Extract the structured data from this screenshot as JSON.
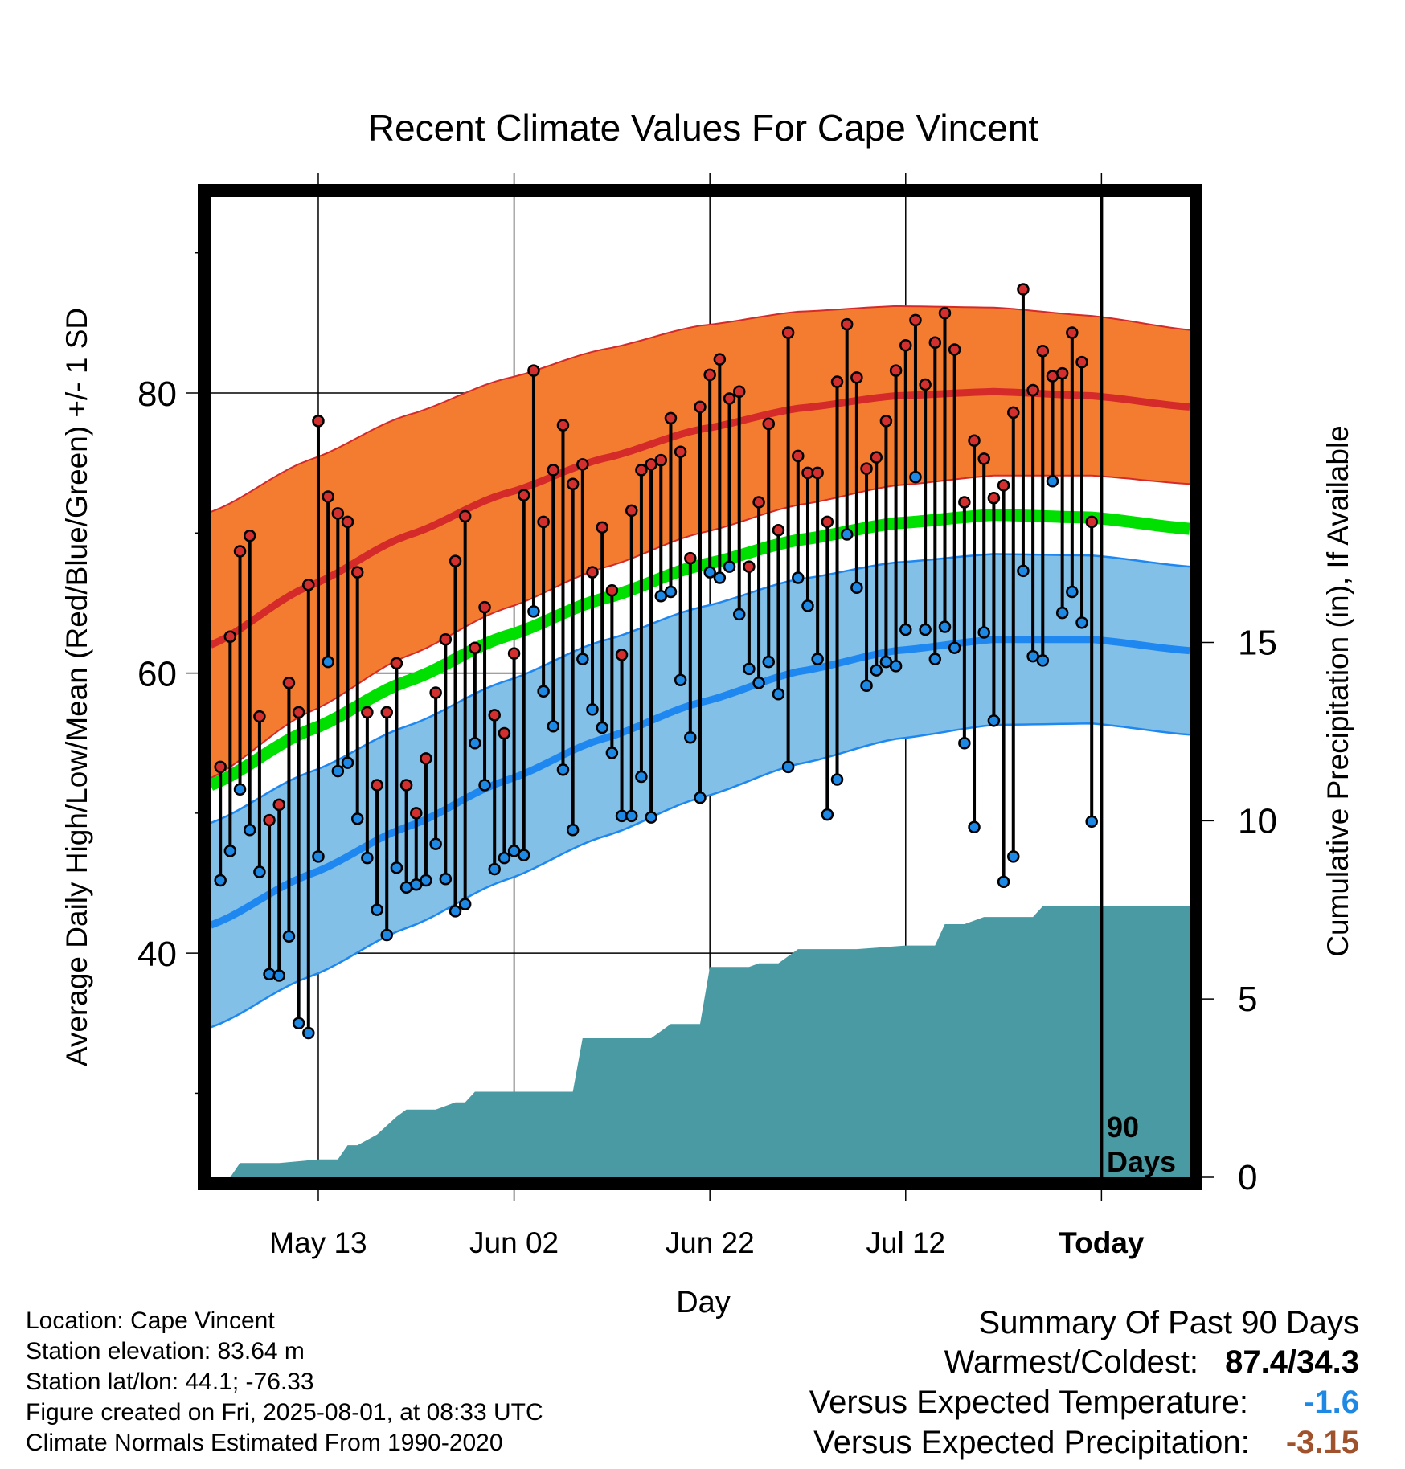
{
  "chart_data": {
    "type": "line",
    "title": "Recent Climate Values For Cape Vincent",
    "xlabel": "Day",
    "ylabel": "Average Daily High/Low/Mean (Red/Blue/Green) +/- 1 SD",
    "y2label": "Cumulative Precipitation (in), If Available",
    "x_tick_labels": [
      "May 13",
      "Jun 02",
      "Jun 22",
      "Jul 12",
      "Today"
    ],
    "x_tick_day_index": [
      11,
      31,
      51,
      71,
      91
    ],
    "x_range_days": [
      0,
      100
    ],
    "ylim": [
      24,
      94
    ],
    "yticks": [
      40,
      60,
      80
    ],
    "y2lim": [
      0,
      27.5
    ],
    "y2ticks": [
      0,
      5,
      10,
      15
    ],
    "today_label_line1": "90",
    "today_label_line2": "Days",
    "colors": {
      "high_band": "#f47c30",
      "high_line": "#d42a2a",
      "low_band": "#82c0e8",
      "low_line": "#1e88f0",
      "mean_line": "#00e000",
      "precip": "#4a9aa3",
      "high_dot": "#d32f2f",
      "low_dot": "#1e88e5"
    },
    "normals": {
      "day": [
        0,
        10,
        20,
        30,
        40,
        50,
        60,
        70,
        80,
        90,
        100
      ],
      "high_mean": [
        62,
        66.2,
        69.8,
        72.8,
        75.3,
        77.4,
        78.9,
        79.8,
        80.1,
        79.8,
        79.0
      ],
      "high_sd": [
        9.5,
        9.0,
        8.6,
        8.2,
        7.8,
        7.4,
        6.9,
        6.4,
        6.0,
        5.7,
        5.5
      ],
      "low_mean": [
        42,
        45.6,
        49.0,
        52.3,
        55.3,
        57.9,
        60.1,
        61.6,
        62.4,
        62.4,
        61.6
      ],
      "low_sd": [
        7.3,
        7.3,
        7.2,
        7.1,
        7.0,
        6.8,
        6.6,
        6.3,
        6.1,
        6.0,
        6.0
      ],
      "mean": [
        52,
        55.9,
        59.4,
        62.6,
        65.3,
        67.7,
        69.5,
        70.7,
        71.3,
        71.1,
        70.3
      ]
    },
    "daily_high": [
      53.3,
      62.6,
      68.7,
      69.8,
      56.9,
      49.5,
      50.6,
      59.3,
      57.2,
      66.3,
      78.0,
      72.6,
      71.4,
      70.8,
      67.2,
      57.2,
      52.0,
      57.2,
      60.7,
      52.0,
      50.0,
      53.9,
      58.6,
      62.4,
      68.0,
      71.2,
      61.8,
      64.7,
      57.0,
      55.7,
      61.4,
      72.7,
      81.6,
      70.8,
      74.5,
      77.7,
      73.5,
      74.9,
      67.2,
      70.4,
      65.9,
      61.3,
      71.6,
      74.5,
      74.9,
      75.2,
      78.2,
      75.8,
      68.2,
      79.0,
      81.3,
      82.4,
      79.6,
      80.1,
      67.6,
      72.2,
      77.8,
      70.2,
      84.3,
      75.5,
      74.3,
      74.3,
      70.8,
      80.8,
      84.9,
      81.1,
      74.6,
      75.4,
      78.0,
      81.6,
      83.4,
      85.2,
      80.6,
      83.6,
      85.7,
      83.1,
      72.2,
      76.6,
      75.3,
      72.5,
      73.4,
      78.6,
      87.4,
      80.2,
      83.0,
      81.2,
      81.4,
      84.3,
      82.2,
      70.8
    ],
    "daily_low": [
      45.2,
      47.3,
      51.7,
      48.8,
      45.8,
      38.5,
      38.4,
      41.2,
      35.0,
      34.3,
      46.9,
      60.8,
      53.0,
      53.6,
      49.6,
      46.8,
      43.1,
      41.3,
      46.1,
      44.7,
      44.9,
      45.2,
      47.8,
      45.3,
      43.0,
      43.5,
      55.0,
      52.0,
      46.0,
      46.8,
      47.3,
      47.0,
      64.4,
      58.7,
      56.2,
      53.1,
      48.8,
      61.0,
      57.4,
      56.1,
      54.3,
      49.8,
      49.8,
      52.6,
      49.7,
      65.5,
      65.8,
      59.5,
      55.4,
      51.1,
      67.2,
      66.8,
      67.6,
      64.2,
      60.3,
      59.3,
      60.8,
      58.5,
      53.3,
      66.8,
      64.8,
      61.0,
      49.9,
      52.4,
      69.9,
      66.1,
      59.1,
      60.2,
      60.8,
      60.5,
      63.1,
      74.0,
      63.1,
      61.0,
      63.3,
      61.8,
      55.0,
      49.0,
      62.9,
      56.6,
      45.1,
      46.9,
      67.3,
      61.2,
      60.9,
      73.7,
      64.3,
      65.8,
      63.6,
      49.4
    ],
    "cumulative_precip_day": [
      0,
      2,
      3,
      7,
      11,
      13,
      14,
      15,
      17,
      19,
      20,
      21,
      23,
      25,
      26,
      27,
      28,
      30,
      31,
      35,
      37,
      38,
      45,
      47,
      48,
      50,
      51,
      55,
      56,
      58,
      60,
      62,
      66,
      71,
      74,
      75,
      77,
      79,
      81,
      84,
      85,
      88,
      100
    ],
    "cumulative_precip_in": [
      0,
      0,
      0.4,
      0.4,
      0.5,
      0.5,
      0.9,
      0.9,
      1.2,
      1.7,
      1.9,
      1.9,
      1.9,
      2.1,
      2.1,
      2.4,
      2.4,
      2.4,
      2.4,
      2.4,
      2.4,
      3.9,
      3.9,
      4.3,
      4.3,
      4.3,
      5.9,
      5.9,
      6.0,
      6.0,
      6.4,
      6.4,
      6.4,
      6.5,
      6.5,
      7.1,
      7.1,
      7.3,
      7.3,
      7.3,
      7.6,
      7.6,
      7.6
    ]
  },
  "info": {
    "location": "Location: Cape Vincent",
    "elevation": "Station elevation: 83.64 m",
    "latlon": "Station lat/lon: 44.1; -76.33",
    "created": "Figure created on Fri, 2025-08-01, at 08:33 UTC",
    "normals": "Climate Normals Estimated From 1990-2020"
  },
  "summary": {
    "title": "Summary Of Past 90 Days",
    "warm_cold_label": "Warmest/Coldest:",
    "warm_cold_value": "87.4/34.3",
    "temp_label": "Versus Expected Temperature:",
    "temp_value": "-1.6",
    "precip_label": "Versus Expected Precipitation:",
    "precip_value": "-3.15"
  }
}
